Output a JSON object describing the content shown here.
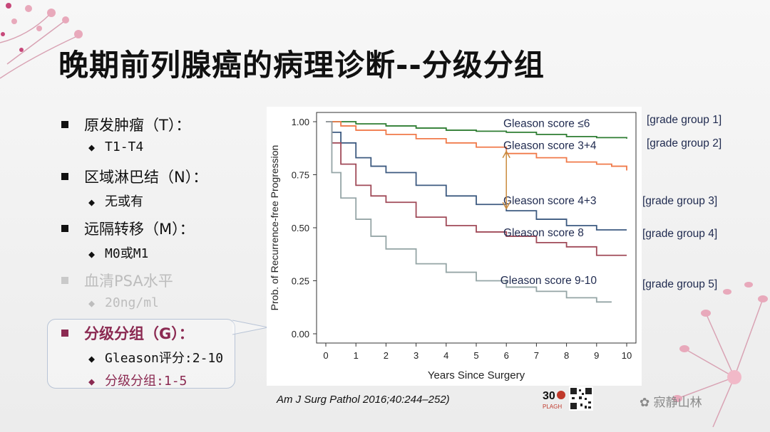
{
  "slide": {
    "title": "晚期前列腺癌的病理诊断--分级分组"
  },
  "bullets": [
    {
      "label": "原发肿瘤（T）：",
      "sub": "T1-T4"
    },
    {
      "label": "区域淋巴结（N）：",
      "sub": "无或有"
    },
    {
      "label": "远隔转移（M）：",
      "sub": "M0或M1"
    },
    {
      "label": "血清PSA水平",
      "sub": "20ng/ml"
    }
  ],
  "highlight": {
    "label": "分级分组（G）：",
    "sub1": "Gleason评分:2-10",
    "sub2": "分级分组:1-5"
  },
  "citation": "Am J Surg Pathol 2016;40:244–252)",
  "watermark": "寂静山林",
  "logo_text": "PLAGH",
  "colors": {
    "title": "#111111",
    "highlight_label": "#8b2a52",
    "annotation_text": "#1f2a4f",
    "arrow": "#c98a3d",
    "series": [
      "#2e7d32",
      "#f07a4a",
      "#3d5a80",
      "#a04a58",
      "#95a5a6"
    ]
  },
  "chart_data": {
    "type": "line",
    "xlabel": "Years Since Surgery",
    "ylabel": "Prob. of Recurrence-free Progression",
    "xlim": [
      0,
      10
    ],
    "ylim": [
      0,
      1.0
    ],
    "x_ticks": [
      "0",
      "1",
      "2",
      "3",
      "4",
      "5",
      "6",
      "7",
      "8",
      "9",
      "10"
    ],
    "y_ticks": [
      "0.00",
      "0.25",
      "0.50",
      "0.75",
      "1.00"
    ],
    "series": [
      {
        "name": "Gleason score ≤6",
        "group": "[grade group 1]",
        "color": "#2e7d32",
        "x": [
          0,
          1,
          2,
          3,
          4,
          5,
          6,
          7,
          8,
          9,
          10
        ],
        "y": [
          1.0,
          0.99,
          0.98,
          0.97,
          0.96,
          0.955,
          0.95,
          0.94,
          0.93,
          0.925,
          0.92
        ]
      },
      {
        "name": "Gleason score 3+4",
        "group": "[grade group 2]",
        "color": "#f07a4a",
        "x": [
          0,
          0.5,
          1,
          2,
          3,
          4,
          5,
          6,
          7,
          8,
          9,
          9.5,
          10
        ],
        "y": [
          1.0,
          0.98,
          0.96,
          0.94,
          0.92,
          0.9,
          0.88,
          0.85,
          0.83,
          0.81,
          0.8,
          0.79,
          0.77
        ]
      },
      {
        "name": "Gleason score 4+3",
        "group": "[grade group 3]",
        "color": "#3d5a80",
        "x": [
          0,
          0.2,
          0.5,
          1,
          1.5,
          2,
          3,
          4,
          5,
          6,
          7,
          8,
          9,
          10
        ],
        "y": [
          1.0,
          0.95,
          0.9,
          0.83,
          0.79,
          0.76,
          0.7,
          0.65,
          0.61,
          0.58,
          0.54,
          0.51,
          0.49,
          0.49
        ]
      },
      {
        "name": "Gleason score 8",
        "group": "[grade group 4]",
        "color": "#a04a58",
        "x": [
          0,
          0.2,
          0.5,
          1,
          1.5,
          2,
          3,
          4,
          5,
          6,
          7,
          8,
          9,
          10
        ],
        "y": [
          1.0,
          0.9,
          0.8,
          0.7,
          0.65,
          0.62,
          0.55,
          0.51,
          0.48,
          0.46,
          0.43,
          0.41,
          0.37,
          0.37
        ]
      },
      {
        "name": "Gleason score 9-10",
        "group": "[grade group 5]",
        "color": "#95a5a6",
        "x": [
          0,
          0.2,
          0.5,
          1,
          1.5,
          2,
          3,
          4,
          5,
          6,
          7,
          8,
          9,
          9.5
        ],
        "y": [
          1.0,
          0.76,
          0.64,
          0.54,
          0.46,
          0.4,
          0.33,
          0.29,
          0.25,
          0.22,
          0.2,
          0.17,
          0.15,
          0.15
        ]
      }
    ],
    "annotation": {
      "type": "double-arrow",
      "x": 6,
      "y_from": 0.86,
      "y_to": 0.59
    },
    "grid": false
  }
}
